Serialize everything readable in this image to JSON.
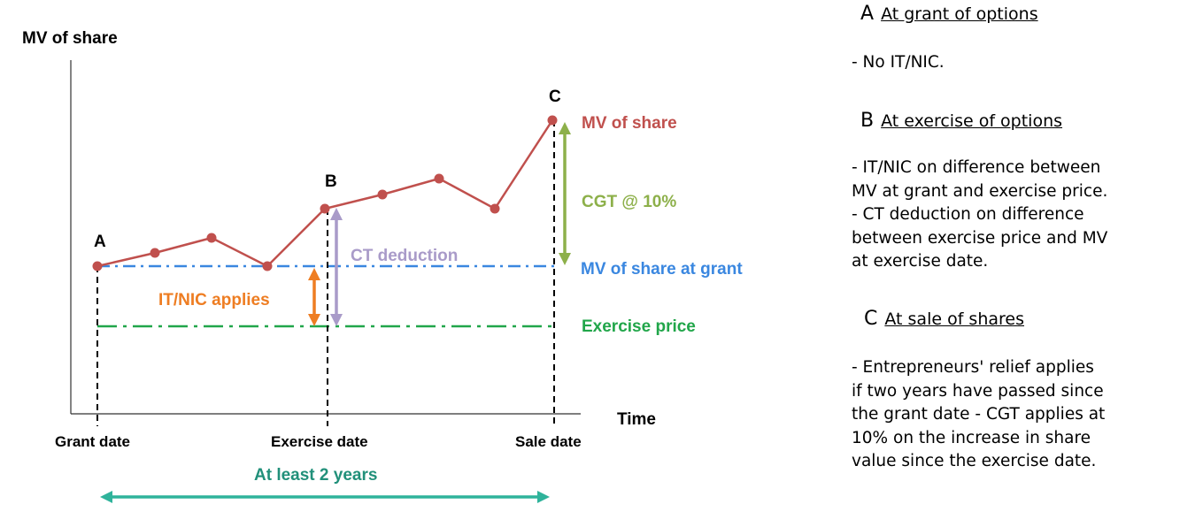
{
  "diagram": {
    "y_axis_label": "MV of share",
    "x_axis_label": "Time",
    "point_labels": {
      "a": "A",
      "b": "B",
      "c": "C"
    },
    "date_labels": {
      "grant": "Grant date",
      "exercise": "Exercise date",
      "sale": "Sale date"
    },
    "line_labels": {
      "mv_share": "MV of share",
      "mv_at_grant": "MV of share at grant",
      "exercise_price": "Exercise price"
    },
    "arrow_labels": {
      "cgt": "CGT @ 10%",
      "ct_deduction": "CT deduction",
      "it_nic": "IT/NIC applies",
      "duration": "At least 2 years"
    },
    "colors": {
      "share_line": "#c0504d",
      "mv_at_grant": "#3a87e0",
      "exercise_price": "#21a64a",
      "cgt": "#8db04a",
      "ct_deduction": "#a99bc9",
      "it_nic": "#ee7d22",
      "duration": "#2fb39b"
    }
  },
  "sections": [
    {
      "letter": "A",
      "heading": "At grant of options",
      "body": "- No IT/NIC."
    },
    {
      "letter": "B",
      "heading": "At exercise of options",
      "body": "- IT/NIC on difference between\nMV at grant and exercise price.\n - CT deduction on difference\nbetween exercise price and MV\nat exercise date."
    },
    {
      "letter": "C",
      "heading": "At sale of shares",
      "body": "- Entrepreneurs' relief applies\nif two years have passed since\nthe grant date - CGT applies at\n10% on the increase in share\nvalue since the exercise date."
    }
  ]
}
